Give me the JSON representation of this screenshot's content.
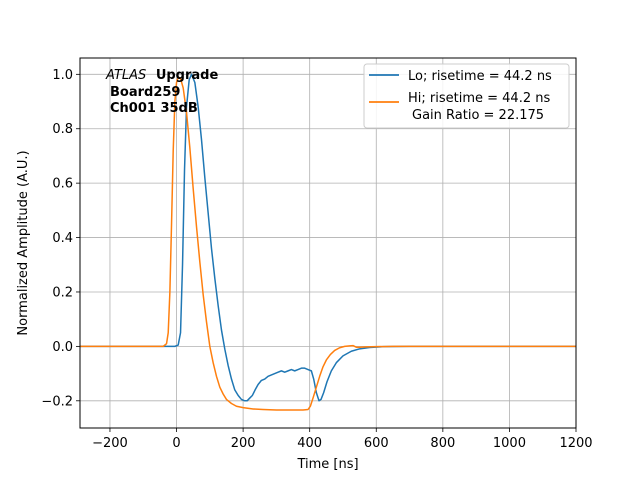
{
  "chart_data": {
    "type": "line",
    "title": "",
    "xlabel": "Time [ns]",
    "ylabel": "Normalized Amplitude (A.U.)",
    "xlim": [
      -290,
      1200
    ],
    "ylim": [
      -0.3,
      1.06
    ],
    "xticks": [
      -200,
      0,
      200,
      400,
      600,
      800,
      1000,
      1200
    ],
    "xtick_labels": [
      "−200",
      "0",
      "200",
      "400",
      "600",
      "800",
      "1000",
      "1200"
    ],
    "yticks": [
      -0.2,
      0.0,
      0.2,
      0.4,
      0.6,
      0.8,
      1.0
    ],
    "ytick_labels": [
      "−0.2",
      "0.0",
      "0.2",
      "0.4",
      "0.6",
      "0.8",
      "1.0"
    ],
    "grid": true,
    "legend_position": "top-right",
    "annotation": {
      "experiment": "ATLAS",
      "experiment_suffix": "Upgrade",
      "line2": "Board259",
      "line3": "Ch001 35dB"
    },
    "series": [
      {
        "name": "Lo; risetime = 44.2 ns",
        "color": "#1f77b4",
        "points": [
          [
            -290,
            0.0
          ],
          [
            -5,
            0.0
          ],
          [
            5,
            0.005
          ],
          [
            12,
            0.05
          ],
          [
            18,
            0.3
          ],
          [
            24,
            0.65
          ],
          [
            30,
            0.88
          ],
          [
            38,
            0.98
          ],
          [
            45,
            1.0
          ],
          [
            55,
            0.97
          ],
          [
            65,
            0.88
          ],
          [
            75,
            0.76
          ],
          [
            85,
            0.62
          ],
          [
            95,
            0.49
          ],
          [
            105,
            0.36
          ],
          [
            115,
            0.25
          ],
          [
            125,
            0.15
          ],
          [
            135,
            0.06
          ],
          [
            145,
            -0.01
          ],
          [
            155,
            -0.07
          ],
          [
            165,
            -0.12
          ],
          [
            175,
            -0.16
          ],
          [
            185,
            -0.18
          ],
          [
            195,
            -0.195
          ],
          [
            205,
            -0.2
          ],
          [
            212,
            -0.2
          ],
          [
            220,
            -0.19
          ],
          [
            228,
            -0.18
          ],
          [
            236,
            -0.16
          ],
          [
            245,
            -0.14
          ],
          [
            255,
            -0.125
          ],
          [
            265,
            -0.12
          ],
          [
            275,
            -0.11
          ],
          [
            285,
            -0.105
          ],
          [
            295,
            -0.1
          ],
          [
            305,
            -0.095
          ],
          [
            315,
            -0.09
          ],
          [
            325,
            -0.095
          ],
          [
            335,
            -0.09
          ],
          [
            345,
            -0.085
          ],
          [
            355,
            -0.09
          ],
          [
            365,
            -0.085
          ],
          [
            375,
            -0.08
          ],
          [
            385,
            -0.08
          ],
          [
            395,
            -0.085
          ],
          [
            405,
            -0.09
          ],
          [
            412,
            -0.12
          ],
          [
            420,
            -0.17
          ],
          [
            428,
            -0.2
          ],
          [
            434,
            -0.195
          ],
          [
            442,
            -0.17
          ],
          [
            452,
            -0.13
          ],
          [
            465,
            -0.09
          ],
          [
            480,
            -0.06
          ],
          [
            500,
            -0.035
          ],
          [
            525,
            -0.018
          ],
          [
            550,
            -0.009
          ],
          [
            580,
            -0.004
          ],
          [
            620,
            -0.001
          ],
          [
            700,
            0.0
          ],
          [
            1200,
            0.0
          ]
        ]
      },
      {
        "name": "Hi; risetime = 44.2 ns",
        "name_line2": "Gain Ratio = 22.175",
        "color": "#ff7f0e",
        "points": [
          [
            -290,
            0.0
          ],
          [
            -40,
            0.0
          ],
          [
            -30,
            0.01
          ],
          [
            -25,
            0.05
          ],
          [
            -20,
            0.2
          ],
          [
            -15,
            0.45
          ],
          [
            -10,
            0.72
          ],
          [
            -5,
            0.9
          ],
          [
            0,
            0.97
          ],
          [
            5,
            0.99
          ],
          [
            12,
            0.985
          ],
          [
            20,
            0.95
          ],
          [
            30,
            0.86
          ],
          [
            40,
            0.73
          ],
          [
            50,
            0.58
          ],
          [
            60,
            0.44
          ],
          [
            70,
            0.31
          ],
          [
            80,
            0.19
          ],
          [
            90,
            0.09
          ],
          [
            100,
            0.0
          ],
          [
            110,
            -0.06
          ],
          [
            120,
            -0.11
          ],
          [
            130,
            -0.15
          ],
          [
            140,
            -0.175
          ],
          [
            150,
            -0.195
          ],
          [
            165,
            -0.21
          ],
          [
            180,
            -0.22
          ],
          [
            200,
            -0.225
          ],
          [
            230,
            -0.23
          ],
          [
            260,
            -0.232
          ],
          [
            300,
            -0.234
          ],
          [
            340,
            -0.234
          ],
          [
            380,
            -0.234
          ],
          [
            395,
            -0.232
          ],
          [
            402,
            -0.22
          ],
          [
            410,
            -0.19
          ],
          [
            420,
            -0.15
          ],
          [
            430,
            -0.11
          ],
          [
            440,
            -0.075
          ],
          [
            450,
            -0.05
          ],
          [
            462,
            -0.03
          ],
          [
            475,
            -0.015
          ],
          [
            490,
            -0.005
          ],
          [
            505,
            0.0
          ],
          [
            520,
            0.002
          ],
          [
            530,
            0.003
          ],
          [
            540,
            -0.003
          ],
          [
            550,
            -0.003
          ],
          [
            570,
            -0.002
          ],
          [
            600,
            -0.001
          ],
          [
            650,
            0.0
          ],
          [
            1200,
            0.0
          ]
        ]
      }
    ]
  }
}
